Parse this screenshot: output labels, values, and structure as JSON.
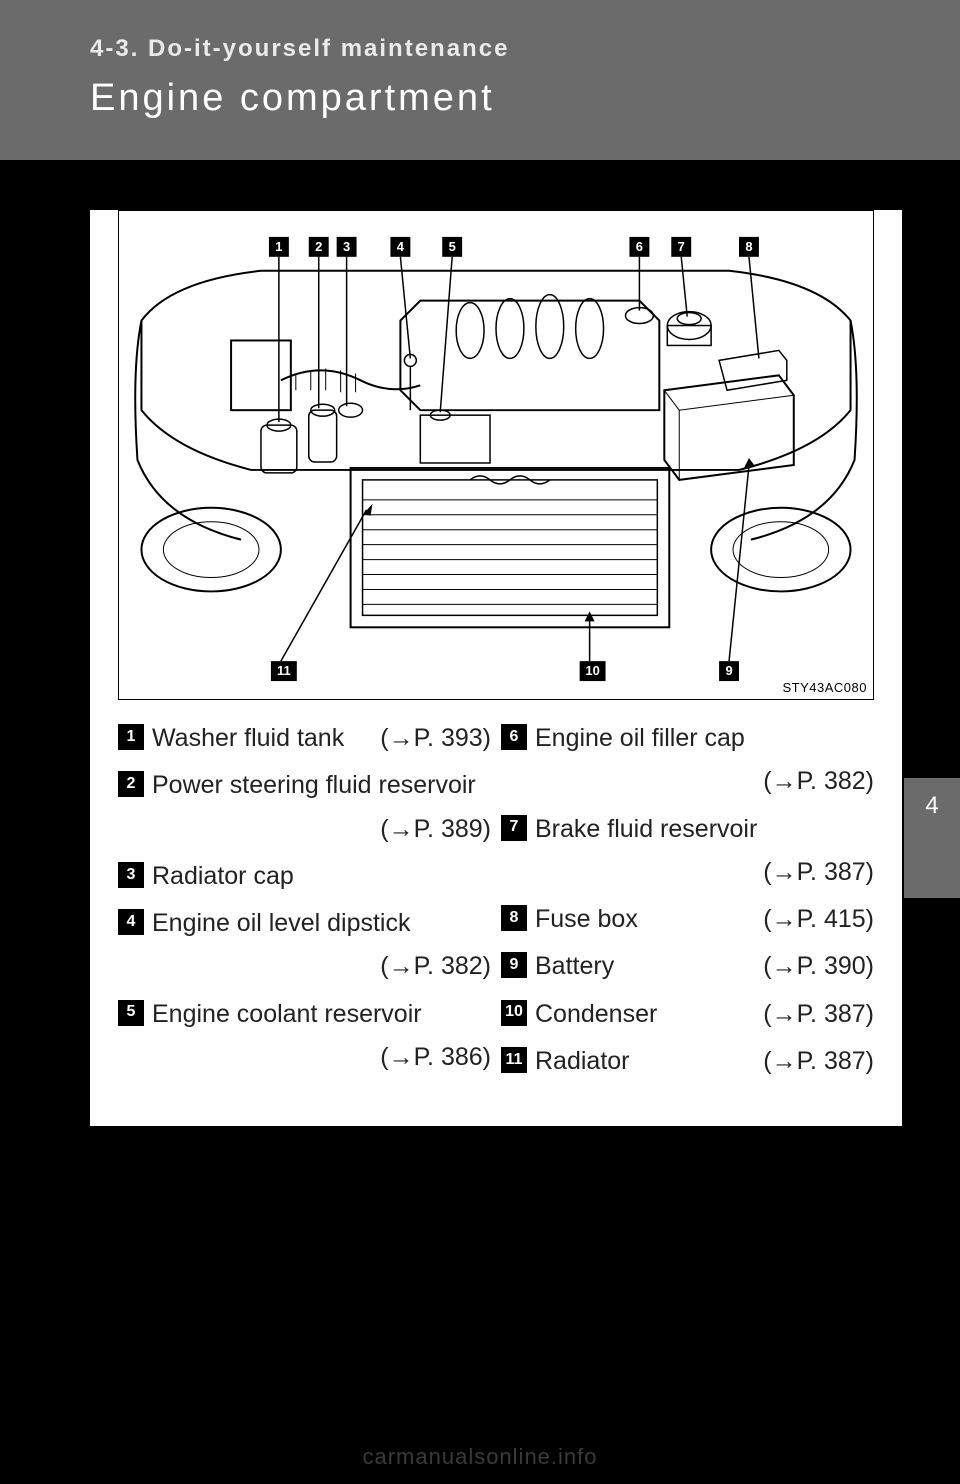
{
  "header": {
    "breadcrumb": "4-3. Do-it-yourself maintenance",
    "title": "Engine compartment"
  },
  "side_tab": "4",
  "footer": "carmanualsonline.info",
  "diagram": {
    "ref_code": "STY43AC080",
    "callout_labels_top": [
      "1",
      "2",
      "3",
      "4",
      "5",
      "6",
      "7",
      "8"
    ],
    "callout_labels_bottom": [
      "11",
      "10",
      "9"
    ],
    "stroke": "#000000",
    "fill": "#ffffff",
    "background": "#ffffff",
    "line_width_main": 2,
    "line_width_thin": 1,
    "callout_box": {
      "bg": "#000000",
      "fg": "#ffffff",
      "size": 20,
      "font_size": 13
    }
  },
  "legend": {
    "arrow_glyph": "→",
    "left": [
      {
        "n": "1",
        "label": "Washer fluid tank",
        "page": "P. 393",
        "inline": true
      },
      {
        "n": "2",
        "label": "Power steering fluid reservoir",
        "page": "P. 389",
        "inline": false
      },
      {
        "n": "3",
        "label": "Radiator cap",
        "page": null,
        "inline": true
      },
      {
        "n": "4",
        "label": "Engine oil level dipstick",
        "page": "P. 382",
        "inline": false
      },
      {
        "n": "5",
        "label": "Engine coolant reservoir",
        "page": "P. 386",
        "inline": false
      }
    ],
    "right": [
      {
        "n": "6",
        "label": "Engine oil filler cap",
        "page": "P. 382",
        "inline": false
      },
      {
        "n": "7",
        "label": "Brake fluid reservoir",
        "page": "P. 387",
        "inline": false
      },
      {
        "n": "8",
        "label": "Fuse box",
        "page": "P. 415",
        "inline": true
      },
      {
        "n": "9",
        "label": "Battery",
        "page": "P. 390",
        "inline": true
      },
      {
        "n": "10",
        "label": "Condenser",
        "page": "P. 387",
        "inline": true
      },
      {
        "n": "11",
        "label": "Radiator",
        "page": "P. 387",
        "inline": true
      }
    ]
  }
}
